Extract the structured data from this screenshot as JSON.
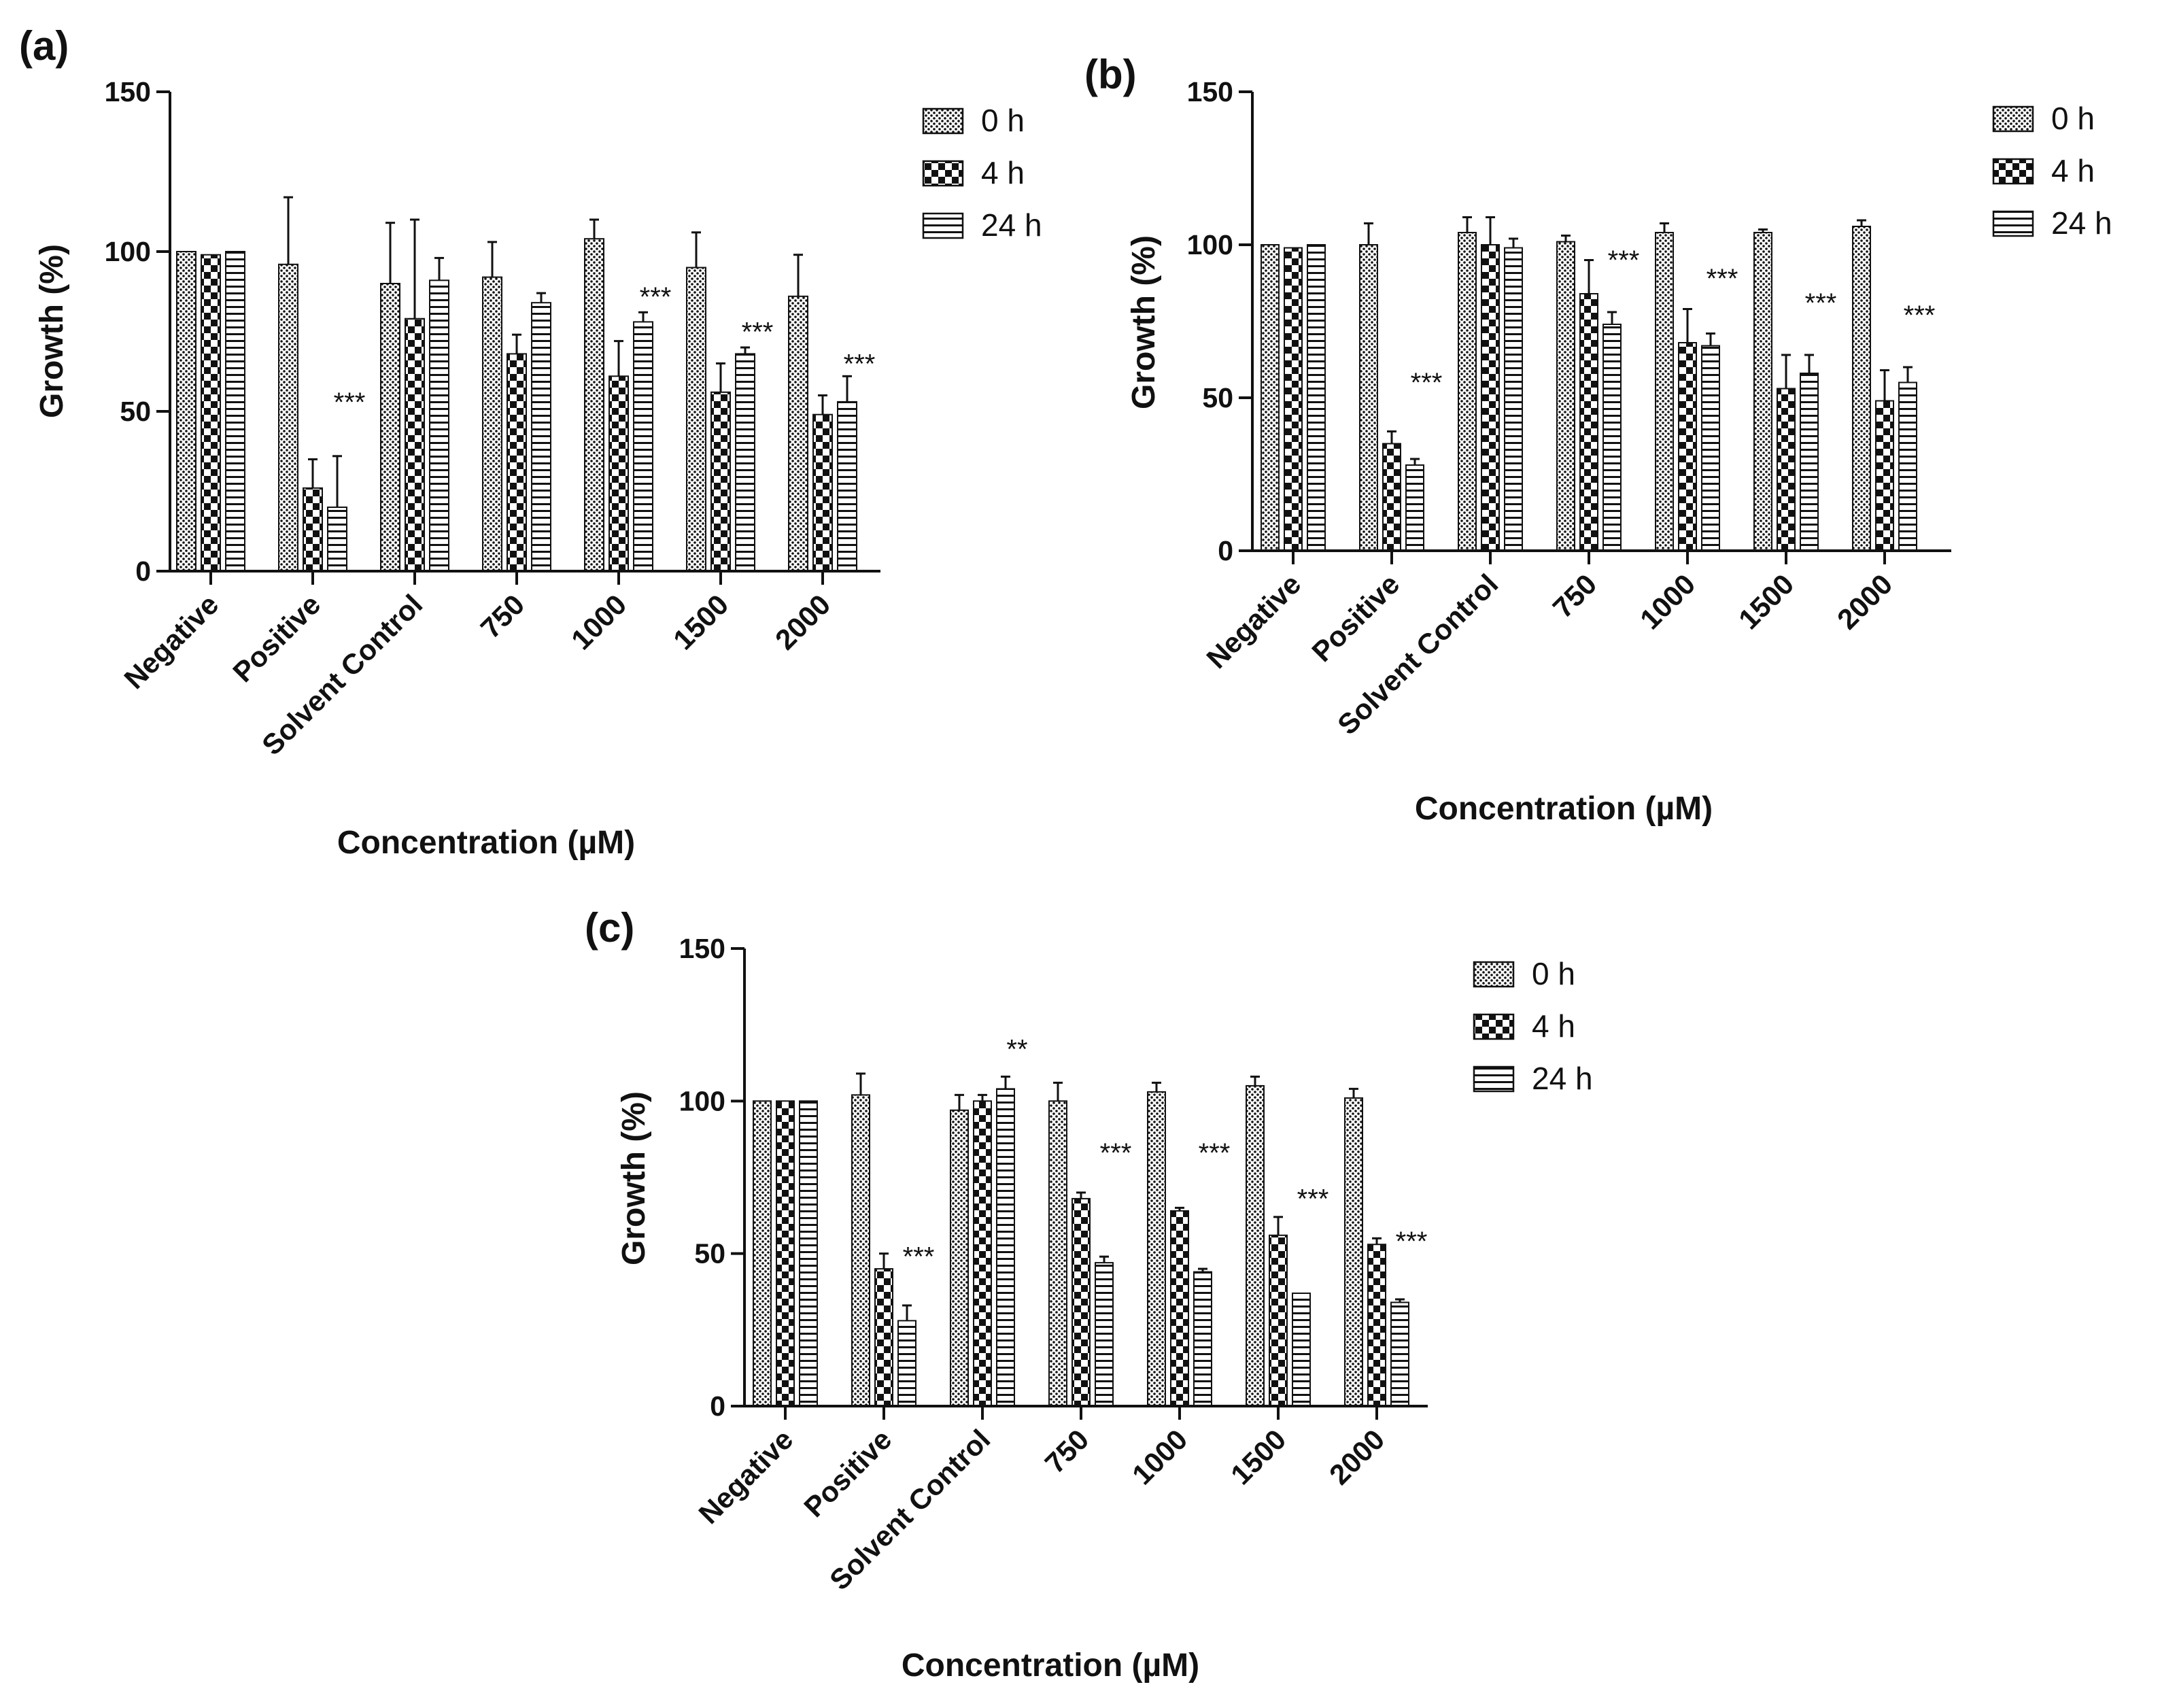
{
  "figure": {
    "legend": [
      "0 h",
      "4 h",
      "24 h"
    ],
    "series_patterns": [
      "dots",
      "checker",
      "hstripes"
    ]
  },
  "chart_data": [
    {
      "panel": "(a)",
      "type": "bar",
      "categories": [
        "Negative",
        "Positive",
        "Solvent Control",
        "750",
        "1000",
        "1500",
        "2000"
      ],
      "series": [
        {
          "name": "0 h",
          "values": [
            100,
            96,
            90,
            92,
            104,
            95,
            86
          ],
          "errors": [
            0,
            21,
            19,
            11,
            6,
            11,
            13
          ]
        },
        {
          "name": "4 h",
          "values": [
            99,
            26,
            79,
            68,
            61,
            56,
            49
          ],
          "errors": [
            0,
            9,
            31,
            6,
            11,
            9,
            6
          ]
        },
        {
          "name": "24 h",
          "values": [
            100,
            20,
            91,
            84,
            78,
            68,
            53
          ],
          "errors": [
            0,
            16,
            7,
            3,
            3,
            2,
            8
          ]
        }
      ],
      "annotations": [
        {
          "category": "Positive",
          "text": "***",
          "y": 50
        },
        {
          "category": "1000",
          "text": "***",
          "y": 83
        },
        {
          "category": "1500",
          "text": "***",
          "y": 72
        },
        {
          "category": "2000",
          "text": "***",
          "y": 62
        }
      ],
      "xlabel": "Concentration (µM)",
      "ylabel": "Growth (%)",
      "ylim": [
        0,
        150
      ],
      "yticks": [
        0,
        50,
        100,
        150
      ]
    },
    {
      "panel": "(b)",
      "type": "bar",
      "categories": [
        "Negative",
        "Positive",
        "Solvent Control",
        "750",
        "1000",
        "1500",
        "2000"
      ],
      "series": [
        {
          "name": "0 h",
          "values": [
            100,
            100,
            104,
            101,
            104,
            104,
            106
          ],
          "errors": [
            0,
            7,
            5,
            2,
            3,
            1,
            2
          ]
        },
        {
          "name": "4 h",
          "values": [
            99,
            35,
            100,
            84,
            68,
            53,
            49
          ],
          "errors": [
            0,
            4,
            9,
            11,
            11,
            11,
            10
          ]
        },
        {
          "name": "24 h",
          "values": [
            100,
            28,
            99,
            74,
            67,
            58,
            55
          ],
          "errors": [
            0,
            2,
            3,
            4,
            4,
            6,
            5
          ]
        }
      ],
      "annotations": [
        {
          "category": "Positive",
          "text": "***",
          "y": 52
        },
        {
          "category": "750",
          "text": "***",
          "y": 92
        },
        {
          "category": "1000",
          "text": "***",
          "y": 86
        },
        {
          "category": "1500",
          "text": "***",
          "y": 78
        },
        {
          "category": "2000",
          "text": "***",
          "y": 74
        }
      ],
      "xlabel": "Concentration (µM)",
      "ylabel": "Growth (%)",
      "ylim": [
        0,
        150
      ],
      "yticks": [
        0,
        50,
        100,
        150
      ]
    },
    {
      "panel": "(c)",
      "type": "bar",
      "categories": [
        "Negative",
        "Positive",
        "Solvent Control",
        "750",
        "1000",
        "1500",
        "2000"
      ],
      "series": [
        {
          "name": "0 h",
          "values": [
            100,
            102,
            97,
            100,
            103,
            105,
            101
          ],
          "errors": [
            0,
            7,
            5,
            6,
            3,
            3,
            3
          ]
        },
        {
          "name": "4 h",
          "values": [
            100,
            45,
            100,
            68,
            64,
            56,
            53
          ],
          "errors": [
            0,
            5,
            2,
            2,
            1,
            6,
            2
          ]
        },
        {
          "name": "24 h",
          "values": [
            100,
            28,
            104,
            47,
            44,
            37,
            34
          ],
          "errors": [
            0,
            5,
            4,
            2,
            1,
            0,
            1
          ]
        }
      ],
      "annotations": [
        {
          "category": "Positive",
          "text": "***",
          "y": 46
        },
        {
          "category": "Solvent Control",
          "text": "**",
          "y": 114
        },
        {
          "category": "750",
          "text": "***",
          "y": 80
        },
        {
          "category": "1000",
          "text": "***",
          "y": 80
        },
        {
          "category": "1500",
          "text": "***",
          "y": 65
        },
        {
          "category": "2000",
          "text": "***",
          "y": 51
        }
      ],
      "xlabel": "Concentration (µM)",
      "ylabel": "Growth (%)",
      "ylim": [
        0,
        150
      ],
      "yticks": [
        0,
        50,
        100,
        150
      ]
    }
  ]
}
